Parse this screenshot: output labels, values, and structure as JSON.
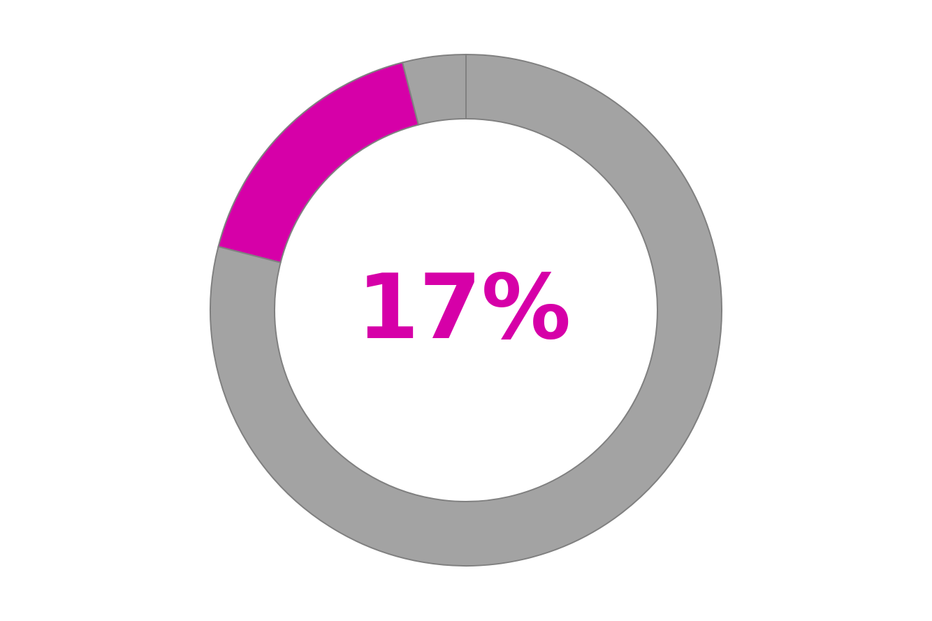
{
  "chart_data": {
    "type": "pie",
    "style": "donut",
    "values": [
      4,
      17,
      79
    ],
    "unit": "%",
    "colors": [
      "#a3a3a3",
      "#d600a8",
      "#a3a3a3"
    ],
    "stroke_color": "#808080",
    "center_label": "17%",
    "center_label_color": "#d600a8",
    "highlighted_index": 1
  }
}
